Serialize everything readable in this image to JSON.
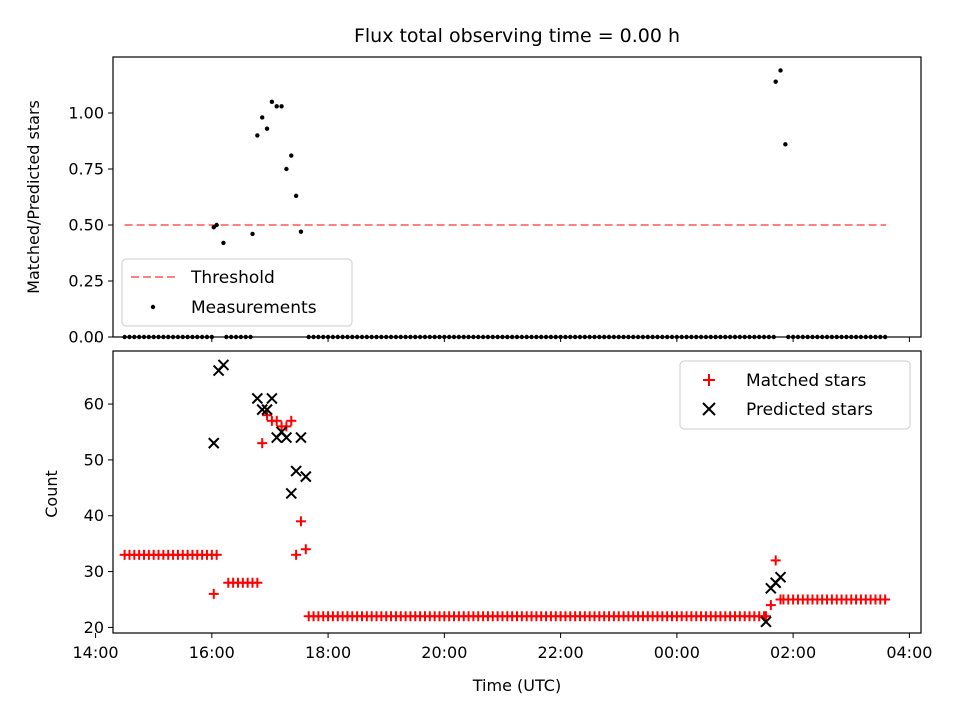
{
  "chart_data": [
    {
      "type": "scatter",
      "title": "Flux total observing time = 0.00 h",
      "ylabel": "Matched/Predicted stars",
      "xlabel": "",
      "xlim": [
        "14:18",
        "04:12"
      ],
      "ylim": [
        0,
        1.25
      ],
      "yticks": [
        "0.00",
        "0.25",
        "0.50",
        "0.75",
        "1.00"
      ],
      "grid": false,
      "legend_position": "lower-left",
      "threshold": {
        "name": "Threshold",
        "value": 0.5,
        "x_start": "14:30",
        "x_end": "03:36",
        "color": "#ff7f7f",
        "style": "dashed"
      },
      "series": [
        {
          "name": "Measurements",
          "color": "#000000",
          "marker": "dot",
          "points": [
            [
              "16:02",
              0.49
            ],
            [
              "16:05",
              0.5
            ],
            [
              "16:12",
              0.42
            ],
            [
              "16:42",
              0.46
            ],
            [
              "16:47",
              0.9
            ],
            [
              "16:52",
              0.98
            ],
            [
              "16:57",
              0.93
            ],
            [
              "17:02",
              1.05
            ],
            [
              "17:07",
              1.03
            ],
            [
              "17:12",
              1.03
            ],
            [
              "17:17",
              0.75
            ],
            [
              "17:22",
              0.81
            ],
            [
              "17:27",
              0.63
            ],
            [
              "17:32",
              0.47
            ],
            [
              "01:42",
              1.14
            ],
            [
              "01:47",
              1.19
            ],
            [
              "01:52",
              0.86
            ]
          ],
          "zero_ranges": [
            [
              "14:30",
              "16:00",
              5
            ],
            [
              "16:15",
              "16:40",
              5
            ],
            [
              "17:40",
              "01:40",
              5
            ],
            [
              "01:55",
              "03:36",
              5
            ]
          ]
        }
      ]
    },
    {
      "type": "scatter",
      "title": "",
      "ylabel": "Count",
      "xlabel": "Time (UTC)",
      "xlim": [
        "14:18",
        "04:12"
      ],
      "ylim": [
        19,
        69.5
      ],
      "yticks": [
        "20",
        "30",
        "40",
        "50",
        "60"
      ],
      "xticks": [
        "14:00",
        "16:00",
        "18:00",
        "20:00",
        "22:00",
        "00:00",
        "02:00",
        "04:00"
      ],
      "grid": false,
      "legend_position": "top-right",
      "series": [
        {
          "name": "Matched stars",
          "color": "#ff0000",
          "marker": "plus",
          "points": [
            [
              "16:02",
              26
            ],
            [
              "16:05",
              33
            ],
            [
              "16:17",
              28
            ],
            [
              "16:22",
              28
            ],
            [
              "16:27",
              28
            ],
            [
              "16:32",
              28
            ],
            [
              "16:37",
              28
            ],
            [
              "16:42",
              28
            ],
            [
              "16:47",
              28
            ],
            [
              "16:52",
              53
            ],
            [
              "16:57",
              58
            ],
            [
              "17:02",
              57
            ],
            [
              "17:07",
              57
            ],
            [
              "17:12",
              56
            ],
            [
              "17:17",
              56
            ],
            [
              "17:22",
              57
            ],
            [
              "17:27",
              33
            ],
            [
              "17:32",
              39
            ],
            [
              "17:37",
              34
            ],
            [
              "01:32",
              22
            ],
            [
              "01:37",
              24
            ],
            [
              "01:42",
              32
            ],
            [
              "01:47",
              25
            ]
          ],
          "const_ranges": [
            [
              "14:30",
              "16:00",
              5,
              33
            ],
            [
              "17:40",
              "01:30",
              5,
              22
            ],
            [
              "01:50",
              "03:36",
              5,
              25
            ]
          ]
        },
        {
          "name": "Predicted stars",
          "color": "#000000",
          "marker": "x",
          "points": [
            [
              "16:02",
              53
            ],
            [
              "16:07",
              66
            ],
            [
              "16:12",
              67
            ],
            [
              "16:47",
              61
            ],
            [
              "16:52",
              59
            ],
            [
              "16:57",
              59
            ],
            [
              "17:02",
              61
            ],
            [
              "17:07",
              54
            ],
            [
              "17:12",
              55
            ],
            [
              "17:17",
              54
            ],
            [
              "17:22",
              44
            ],
            [
              "17:27",
              48
            ],
            [
              "17:32",
              54
            ],
            [
              "17:37",
              47
            ],
            [
              "01:32",
              21
            ],
            [
              "01:37",
              27
            ],
            [
              "01:42",
              28
            ],
            [
              "01:47",
              29
            ]
          ]
        }
      ]
    }
  ]
}
